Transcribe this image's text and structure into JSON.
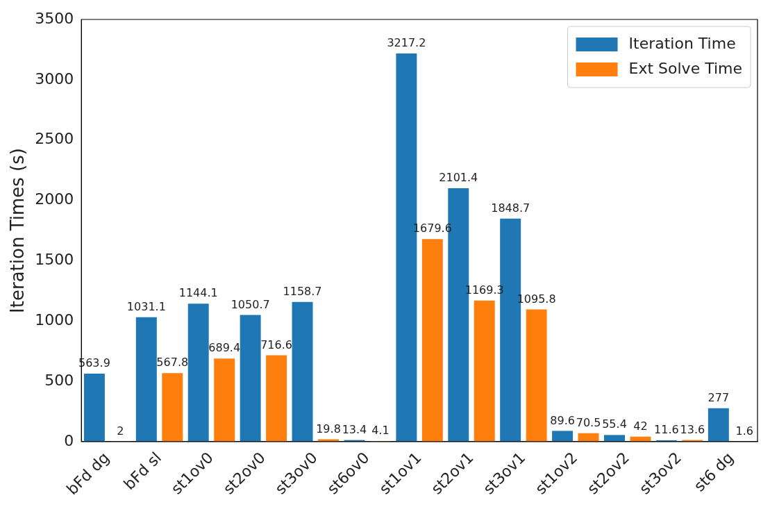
{
  "chart_data": {
    "type": "bar",
    "ylabel": "Iteration Times (s)",
    "categories": [
      "bFd dg",
      "bFd sl",
      "st1ov0",
      "st2ov0",
      "st3ov0",
      "st6ov0",
      "st1ov1",
      "st2ov1",
      "st3ov1",
      "st1ov2",
      "st2ov2",
      "st3ov2",
      "st6 dg"
    ],
    "series": [
      {
        "name": "Iteration Time",
        "color": "#1f77b4",
        "values": [
          563.9,
          1031.1,
          1144.1,
          1050.7,
          1158.7,
          13.4,
          3217.2,
          2101.4,
          1848.7,
          89.6,
          55.4,
          11.6,
          277
        ]
      },
      {
        "name": "Ext Solve Time",
        "color": "#ff7f0e",
        "values": [
          2,
          567.8,
          689.4,
          716.6,
          19.8,
          4.1,
          1679.6,
          1169.3,
          1095.8,
          70.5,
          42,
          13.6,
          1.6
        ]
      }
    ],
    "ylim": [
      0,
      3500
    ],
    "yticks": [
      0,
      500,
      1000,
      1500,
      2000,
      2500,
      3000,
      3500
    ],
    "grid": false,
    "legend": "top right",
    "data_labels": true
  }
}
